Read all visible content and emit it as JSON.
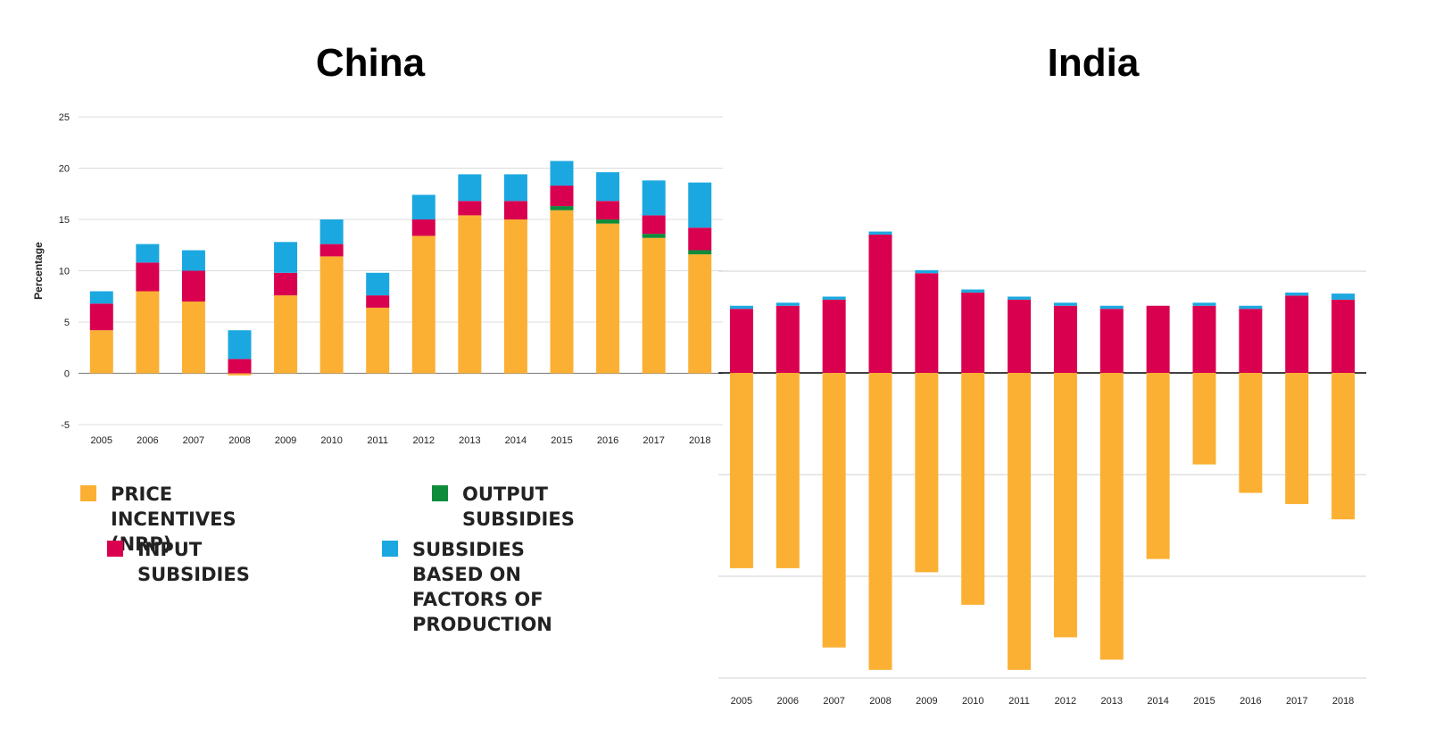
{
  "chart_data": [
    {
      "type": "bar",
      "title": "China",
      "ylabel": "Percentage",
      "ylim": [
        -5,
        25
      ],
      "yticks": [
        25,
        20,
        15,
        10,
        5,
        0,
        -5
      ],
      "grid": true,
      "categories": [
        "2005",
        "2006",
        "2007",
        "2008",
        "2009",
        "2010",
        "2011",
        "2012",
        "2013",
        "2014",
        "2015",
        "2016",
        "2017",
        "2018"
      ],
      "series": [
        {
          "name": "PRICE INCENTIVES (NRP)",
          "color": "#FBB034",
          "values": [
            4.2,
            8.0,
            7.0,
            -0.2,
            7.6,
            11.4,
            6.4,
            13.4,
            15.4,
            15.0,
            15.9,
            14.6,
            13.2,
            11.6
          ]
        },
        {
          "name": "OUTPUT SUBSIDIES",
          "color": "#0E8C3C",
          "values": [
            0,
            0,
            0,
            0,
            0,
            0,
            0,
            0,
            0,
            0,
            0.4,
            0.4,
            0.4,
            0.4
          ]
        },
        {
          "name": "INPUT SUBSIDIES",
          "color": "#D9004F",
          "values": [
            2.6,
            2.8,
            3.0,
            1.4,
            2.2,
            1.2,
            1.2,
            1.6,
            1.4,
            1.8,
            2.0,
            1.8,
            1.8,
            2.2
          ]
        },
        {
          "name": "SUBSIDIES BASED ON\nFACTORS OF PRODUCTION",
          "color": "#1BA8E0",
          "values": [
            1.2,
            1.8,
            2.0,
            2.8,
            3.0,
            2.4,
            2.2,
            2.4,
            2.6,
            2.6,
            2.4,
            2.8,
            3.4,
            4.4
          ]
        }
      ]
    },
    {
      "type": "bar",
      "title": "India",
      "categories": [
        "2005",
        "2006",
        "2007",
        "2008",
        "2009",
        "2010",
        "2011",
        "2012",
        "2013",
        "2014",
        "2015",
        "2016",
        "2017",
        "2018"
      ],
      "grid": true,
      "series": [
        {
          "name": "PRICE INCENTIVES (NRP)",
          "color": "#FBB034",
          "values": [
            -19.2,
            -19.2,
            -27.0,
            -29.2,
            -19.6,
            -22.8,
            -29.2,
            -26.0,
            -28.2,
            -18.3,
            -9.0,
            -11.8,
            -12.9,
            -14.4
          ]
        },
        {
          "name": "INPUT SUBSIDIES",
          "color": "#D9004F",
          "values": [
            6.3,
            6.6,
            7.2,
            13.6,
            9.8,
            7.9,
            7.2,
            6.6,
            6.3,
            6.6,
            6.6,
            6.3,
            7.6,
            7.2
          ]
        },
        {
          "name": "SUBSIDIES BASED ON FACTORS OF PRODUCTION",
          "color": "#1BA8E0",
          "values": [
            0.3,
            0.3,
            0.3,
            0.3,
            0.3,
            0.3,
            0.3,
            0.3,
            0.3,
            0.0,
            0.3,
            0.3,
            0.3,
            0.6
          ]
        }
      ]
    }
  ],
  "legend": [
    {
      "label": "PRICE INCENTIVES (NRP)",
      "color": "#FBB034"
    },
    {
      "label": "OUTPUT SUBSIDIES",
      "color": "#0E8C3C"
    },
    {
      "label": "INPUT SUBSIDIES",
      "color": "#D9004F"
    },
    {
      "label": "SUBSIDIES BASED ON\nFACTORS OF PRODUCTION",
      "color": "#1BA8E0"
    }
  ]
}
